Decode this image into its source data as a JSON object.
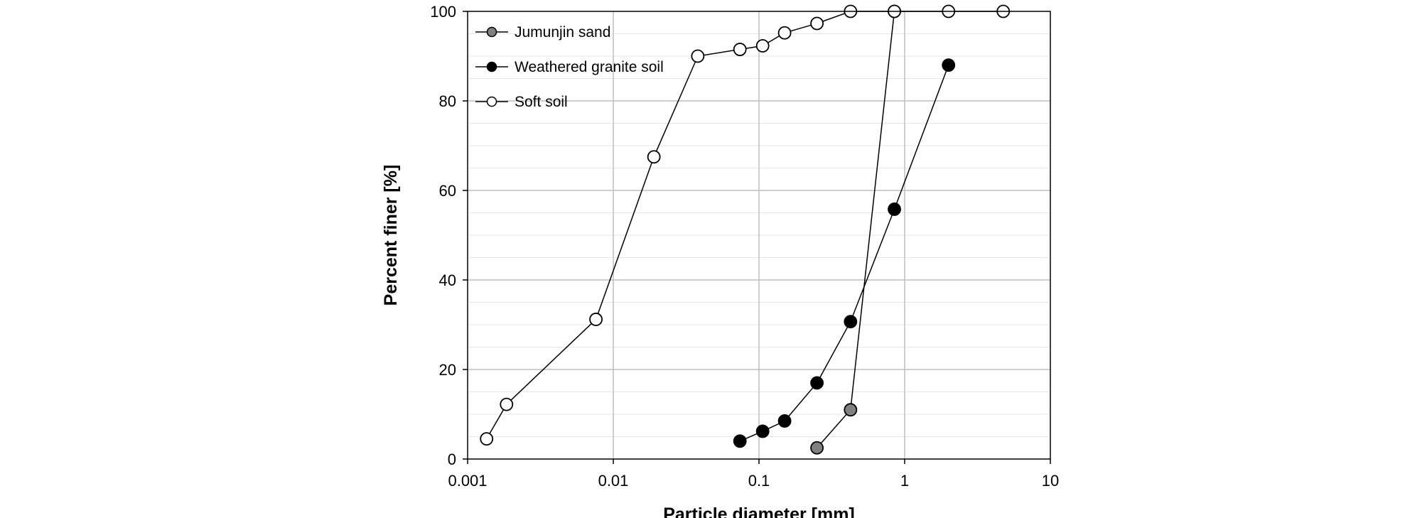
{
  "chart_data": {
    "type": "scatter",
    "title": "",
    "xlabel": "Particle diameter [mm]",
    "ylabel": "Percent finer [%]",
    "x_scale": "log",
    "xlim": [
      0.001,
      10
    ],
    "ylim": [
      0,
      100
    ],
    "x_ticks": [
      "0.001",
      "0.01",
      "0.1",
      "1",
      "10"
    ],
    "y_ticks": [
      "0",
      "20",
      "40",
      "60",
      "80",
      "100"
    ],
    "grid": true,
    "legend_position": "top-left",
    "series": [
      {
        "name": "Jumunjin sand",
        "marker_fill": "#808080",
        "points": [
          [
            0.25,
            2.5
          ],
          [
            0.425,
            11.0
          ],
          [
            0.85,
            100.0
          ]
        ]
      },
      {
        "name": "Weathered granite soil",
        "marker_fill": "#000000",
        "points": [
          [
            0.074,
            4.0
          ],
          [
            0.106,
            6.2
          ],
          [
            0.15,
            8.5
          ],
          [
            0.25,
            17.0
          ],
          [
            0.425,
            30.7
          ],
          [
            0.85,
            55.8
          ],
          [
            2.0,
            88.0
          ]
        ]
      },
      {
        "name": "Soft soil",
        "marker_fill": "#ffffff",
        "points": [
          [
            0.00135,
            4.5
          ],
          [
            0.00185,
            12.2
          ],
          [
            0.0076,
            31.2
          ],
          [
            0.019,
            67.5
          ],
          [
            0.038,
            90.0
          ],
          [
            0.074,
            91.5
          ],
          [
            0.106,
            92.3
          ],
          [
            0.15,
            95.2
          ],
          [
            0.25,
            97.3
          ],
          [
            0.425,
            100.0
          ],
          [
            0.85,
            100.0
          ],
          [
            2.0,
            100.0
          ],
          [
            4.75,
            100.0
          ]
        ]
      }
    ]
  }
}
